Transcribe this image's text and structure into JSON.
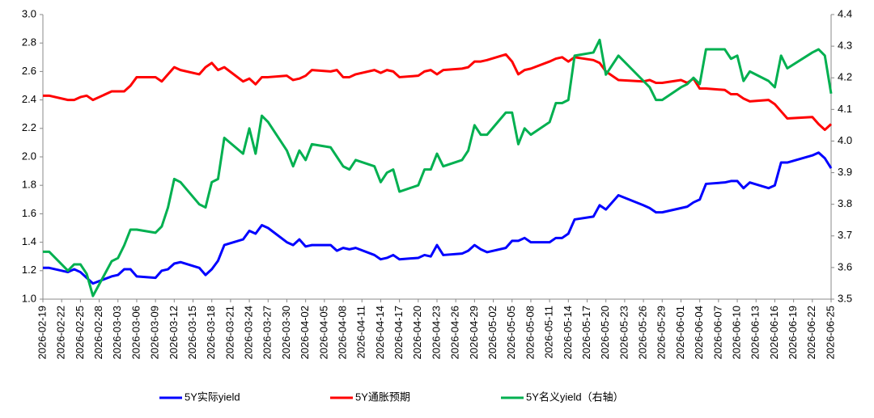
{
  "chart_data": {
    "type": "line",
    "x": [
      "2026-02-19",
      "2026-02-20",
      "2026-02-23",
      "2026-02-24",
      "2026-02-25",
      "2026-02-26",
      "2026-02-27",
      "2026-03-02",
      "2026-03-03",
      "2026-03-04",
      "2026-03-05",
      "2026-03-06",
      "2026-03-09",
      "2026-03-10",
      "2026-03-11",
      "2026-03-12",
      "2026-03-13",
      "2026-03-16",
      "2026-03-17",
      "2026-03-18",
      "2026-03-19",
      "2026-03-20",
      "2026-03-23",
      "2026-03-24",
      "2026-03-25",
      "2026-03-26",
      "2026-03-27",
      "2026-03-30",
      "2026-03-31",
      "2026-04-01",
      "2026-04-02",
      "2026-04-03",
      "2026-04-06",
      "2026-04-07",
      "2026-04-08",
      "2026-04-09",
      "2026-04-10",
      "2026-04-13",
      "2026-04-14",
      "2026-04-15",
      "2026-04-16",
      "2026-04-17",
      "2026-04-20",
      "2026-04-21",
      "2026-04-22",
      "2026-04-23",
      "2026-04-24",
      "2026-04-27",
      "2026-04-28",
      "2026-04-29",
      "2026-04-30",
      "2026-05-01",
      "2026-05-04",
      "2026-05-05",
      "2026-05-06",
      "2026-05-07",
      "2026-05-08",
      "2026-05-11",
      "2026-05-12",
      "2026-05-13",
      "2026-05-14",
      "2026-05-15",
      "2026-05-18",
      "2026-05-19",
      "2026-05-20",
      "2026-05-22",
      "2026-05-26",
      "2026-05-27",
      "2026-05-28",
      "2026-05-29",
      "2026-06-01",
      "2026-06-02",
      "2026-06-03",
      "2026-06-04",
      "2026-06-05",
      "2026-06-08",
      "2026-06-09",
      "2026-06-10",
      "2026-06-11",
      "2026-06-12",
      "2026-06-15",
      "2026-06-16",
      "2026-06-17",
      "2026-06-18",
      "2026-06-22",
      "2026-06-23",
      "2026-06-24",
      "2026-06-25"
    ],
    "series": [
      {
        "name": "5Y实际yield",
        "color": "#0000ff",
        "values": [
          1.22,
          1.22,
          1.19,
          1.21,
          1.19,
          1.15,
          1.11,
          1.16,
          1.17,
          1.21,
          1.21,
          1.16,
          1.15,
          1.2,
          1.21,
          1.25,
          1.26,
          1.22,
          1.17,
          1.21,
          1.27,
          1.38,
          1.42,
          1.48,
          1.46,
          1.52,
          1.5,
          1.4,
          1.38,
          1.42,
          1.37,
          1.38,
          1.38,
          1.34,
          1.36,
          1.35,
          1.36,
          1.31,
          1.28,
          1.29,
          1.31,
          1.28,
          1.29,
          1.31,
          1.3,
          1.38,
          1.31,
          1.32,
          1.34,
          1.38,
          1.35,
          1.33,
          1.36,
          1.41,
          1.41,
          1.43,
          1.4,
          1.4,
          1.43,
          1.43,
          1.46,
          1.56,
          1.58,
          1.66,
          1.63,
          1.73,
          1.66,
          1.64,
          1.61,
          1.61,
          1.64,
          1.65,
          1.68,
          1.7,
          1.81,
          1.82,
          1.83,
          1.83,
          1.78,
          1.82,
          1.78,
          1.8,
          1.96,
          1.96,
          2.01,
          2.03,
          1.99,
          1.92
        ]
      },
      {
        "name": "5Y通胀预期",
        "color": "#ff0000",
        "values": [
          2.43,
          2.43,
          2.4,
          2.4,
          2.42,
          2.43,
          2.4,
          2.46,
          2.46,
          2.46,
          2.5,
          2.56,
          2.56,
          2.53,
          2.58,
          2.63,
          2.61,
          2.58,
          2.63,
          2.66,
          2.61,
          2.63,
          2.53,
          2.55,
          2.51,
          2.56,
          2.56,
          2.57,
          2.54,
          2.55,
          2.57,
          2.61,
          2.6,
          2.61,
          2.56,
          2.56,
          2.58,
          2.61,
          2.59,
          2.61,
          2.6,
          2.56,
          2.57,
          2.6,
          2.61,
          2.58,
          2.61,
          2.62,
          2.63,
          2.67,
          2.67,
          2.68,
          2.72,
          2.67,
          2.58,
          2.61,
          2.62,
          2.67,
          2.69,
          2.7,
          2.67,
          2.7,
          2.68,
          2.66,
          2.6,
          2.54,
          2.53,
          2.54,
          2.52,
          2.52,
          2.54,
          2.52,
          2.55,
          2.48,
          2.48,
          2.47,
          2.44,
          2.44,
          2.41,
          2.39,
          2.4,
          2.37,
          2.32,
          2.27,
          2.28,
          2.23,
          2.19,
          2.23
        ]
      },
      {
        "name": "5Y名义yield（右轴）",
        "color": "#00b050",
        "axis": "y2",
        "values": [
          3.65,
          3.65,
          3.59,
          3.61,
          3.61,
          3.58,
          3.51,
          3.62,
          3.63,
          3.67,
          3.72,
          3.72,
          3.71,
          3.73,
          3.79,
          3.88,
          3.87,
          3.8,
          3.79,
          3.87,
          3.88,
          4.01,
          3.96,
          4.04,
          3.96,
          4.08,
          4.06,
          3.97,
          3.92,
          3.97,
          3.94,
          3.99,
          3.98,
          3.95,
          3.92,
          3.91,
          3.94,
          3.92,
          3.87,
          3.9,
          3.91,
          3.84,
          3.86,
          3.91,
          3.91,
          3.96,
          3.92,
          3.94,
          3.97,
          4.05,
          4.02,
          4.02,
          4.09,
          4.09,
          3.99,
          4.04,
          4.02,
          4.06,
          4.12,
          4.12,
          4.13,
          4.27,
          4.28,
          4.32,
          4.21,
          4.27,
          4.19,
          4.17,
          4.13,
          4.13,
          4.17,
          4.18,
          4.2,
          4.18,
          4.29,
          4.29,
          4.26,
          4.27,
          4.19,
          4.22,
          4.19,
          4.17,
          4.27,
          4.23,
          4.28,
          4.29,
          4.27,
          4.15
        ]
      }
    ],
    "xlim": [
      "2026-02-19",
      "2026-06-25"
    ],
    "xticks": [
      "2026-02-19",
      "2026-02-22",
      "2026-02-25",
      "2026-02-28",
      "2026-03-03",
      "2026-03-06",
      "2026-03-09",
      "2026-03-12",
      "2026-03-15",
      "2026-03-18",
      "2026-03-21",
      "2026-03-24",
      "2026-03-27",
      "2026-03-30",
      "2026-04-02",
      "2026-04-05",
      "2026-04-08",
      "2026-04-11",
      "2026-04-14",
      "2026-04-17",
      "2026-04-20",
      "2026-04-23",
      "2026-04-26",
      "2026-04-29",
      "2026-05-02",
      "2026-05-05",
      "2026-05-08",
      "2026-05-11",
      "2026-05-14",
      "2026-05-17",
      "2026-05-20",
      "2026-05-23",
      "2026-05-26",
      "2026-05-29",
      "2026-06-01",
      "2026-06-04",
      "2026-06-07",
      "2026-06-10",
      "2026-06-13",
      "2026-06-16",
      "2026-06-19",
      "2026-06-22",
      "2026-06-25"
    ],
    "ylim": [
      1.0,
      3.0
    ],
    "yticks": [
      {
        "value": 1.0,
        "label": "1.0"
      },
      {
        "value": 1.2,
        "label": "1.2"
      },
      {
        "value": 1.4,
        "label": "1.4"
      },
      {
        "value": 1.6,
        "label": "1.6"
      },
      {
        "value": 1.8,
        "label": "1.8"
      },
      {
        "value": 2.0,
        "label": "2.0"
      },
      {
        "value": 2.2,
        "label": "2.2"
      },
      {
        "value": 2.4,
        "label": "2.4"
      },
      {
        "value": 2.6,
        "label": "2.6"
      },
      {
        "value": 2.8,
        "label": "2.8"
      },
      {
        "value": 3.0,
        "label": "3.0"
      }
    ],
    "y2lim": [
      3.5,
      4.4
    ],
    "y2ticks": [
      3.5,
      3.6,
      3.7,
      3.8,
      3.9,
      {
        "value": 4.0,
        "label": "4.0"
      },
      4.1,
      4.2,
      4.3,
      4.4
    ],
    "grid": false,
    "legend": "bottom"
  }
}
